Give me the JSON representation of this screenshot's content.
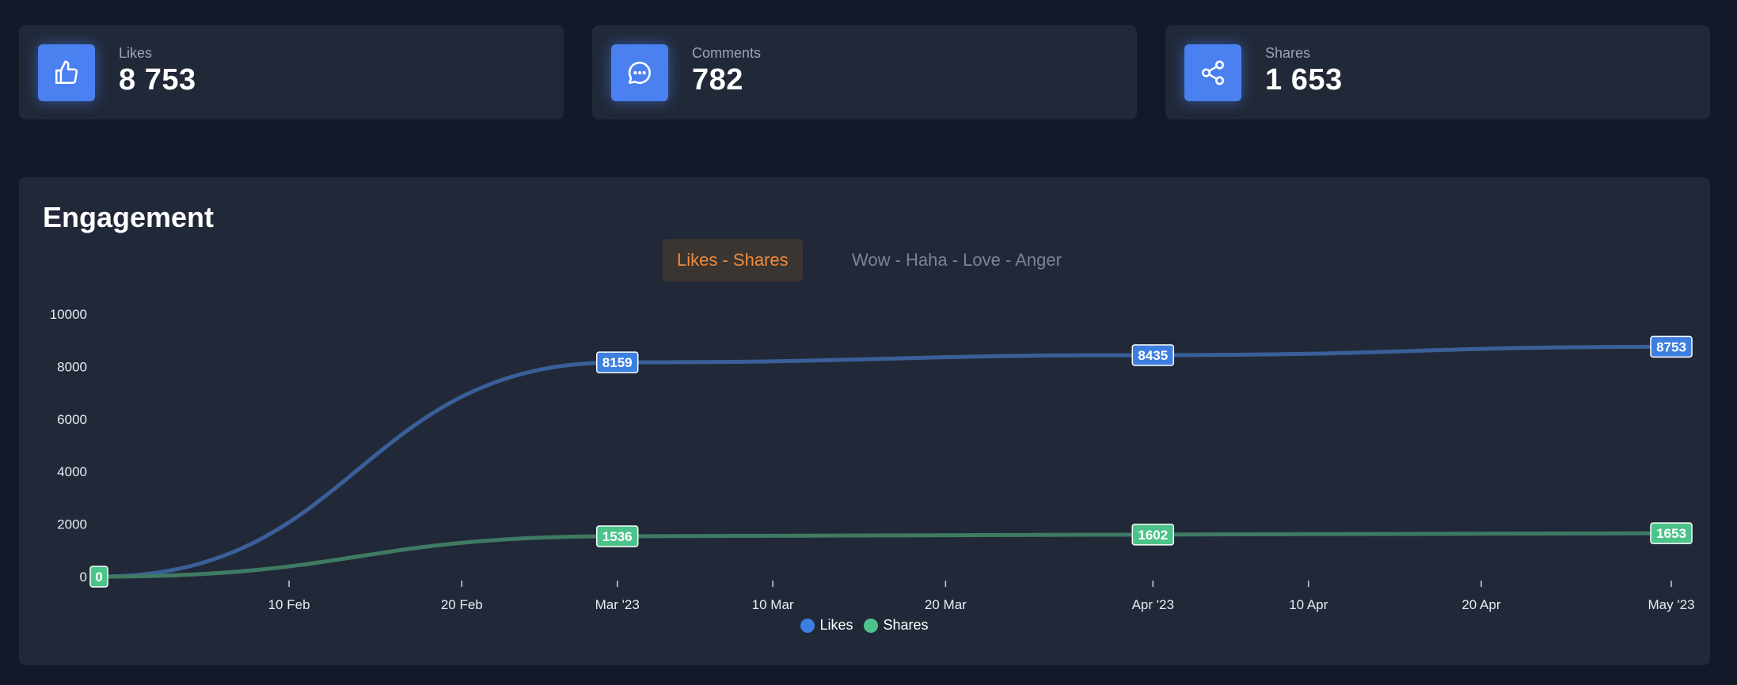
{
  "stats": [
    {
      "label": "Likes",
      "value": "8 753",
      "icon": "thumbs-up-icon"
    },
    {
      "label": "Comments",
      "value": "782",
      "icon": "chat-bubble-icon"
    },
    {
      "label": "Shares",
      "value": "1 653",
      "icon": "share-icon"
    }
  ],
  "panel": {
    "title": "Engagement",
    "tabs": [
      {
        "label": "Likes - Shares",
        "active": true
      },
      {
        "label": "Wow - Haha - Love - Anger",
        "active": false
      }
    ]
  },
  "colors": {
    "background": "#121a2a",
    "card": "#212938",
    "accent_blue": "#4a80f0",
    "likes_line": "#3a5f99",
    "shares_line": "#3f7a63",
    "likes_label": "#3d7fe0",
    "shares_label": "#4cc38a",
    "active_tab": "#f08a3c"
  },
  "chart_data": {
    "type": "line",
    "x": [
      "2023-01-30",
      "2023-03-01",
      "2023-04-01",
      "2023-05-01"
    ],
    "series": [
      {
        "name": "Likes",
        "values": [
          0,
          8159,
          8435,
          8753
        ],
        "color": "#3d7fe0"
      },
      {
        "name": "Shares",
        "values": [
          0,
          1536,
          1602,
          1653
        ],
        "color": "#4cc38a"
      }
    ],
    "data_labels": [
      {
        "series": "Likes",
        "labels": [
          "8159",
          "8435",
          "8753"
        ]
      },
      {
        "series": "Shares",
        "labels": [
          "0",
          "1536",
          "1602",
          "1653"
        ]
      }
    ],
    "ylim": [
      0,
      10000
    ],
    "y_ticks": [
      "0",
      "2000",
      "4000",
      "6000",
      "8000",
      "10000"
    ],
    "x_ticks": [
      {
        "date": "2023-02-10",
        "label": "10 Feb"
      },
      {
        "date": "2023-02-20",
        "label": "20 Feb"
      },
      {
        "date": "2023-03-01",
        "label": "Mar '23"
      },
      {
        "date": "2023-03-10",
        "label": "10 Mar"
      },
      {
        "date": "2023-03-20",
        "label": "20 Mar"
      },
      {
        "date": "2023-04-01",
        "label": "Apr '23"
      },
      {
        "date": "2023-04-10",
        "label": "10 Apr"
      },
      {
        "date": "2023-04-20",
        "label": "20 Apr"
      },
      {
        "date": "2023-05-01",
        "label": "May '23"
      }
    ],
    "legend": [
      "Likes",
      "Shares"
    ],
    "legend_position": "bottom-center"
  }
}
